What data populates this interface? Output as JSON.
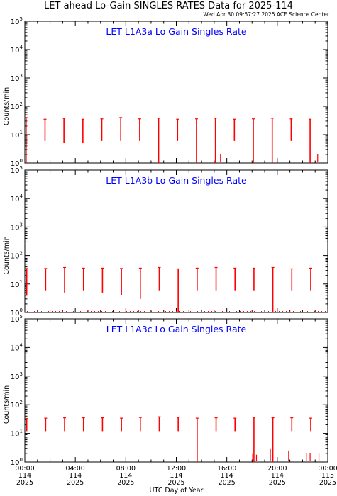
{
  "header": {
    "title": "LET ahead Lo-Gain SINGLES RATES Data for 2025-114",
    "timestamp": "Wed Apr 30 09:57:27 2025 ACE Science Center"
  },
  "colors": {
    "data": "#ff0000",
    "panel_title": "#0000ff",
    "axes": "#000000"
  },
  "chart_data": [
    {
      "type": "line",
      "title": "LET L1A3a Lo Gain Singles Rate",
      "ylabel": "Counts/min",
      "yscale": "log",
      "ylim": [
        1,
        100000
      ],
      "xlim": [
        0,
        24
      ],
      "bursts": [
        {
          "x": 0.1,
          "hi": 40,
          "lo": 1
        },
        {
          "x": 1.6,
          "hi": 35,
          "lo": 6
        },
        {
          "x": 3.1,
          "hi": 38,
          "lo": 5
        },
        {
          "x": 4.6,
          "hi": 35,
          "lo": 5
        },
        {
          "x": 6.1,
          "hi": 36,
          "lo": 6
        },
        {
          "x": 7.6,
          "hi": 40,
          "lo": 6
        },
        {
          "x": 9.1,
          "hi": 36,
          "lo": 6
        },
        {
          "x": 10.6,
          "hi": 38,
          "lo": 1
        },
        {
          "x": 12.1,
          "hi": 35,
          "lo": 6
        },
        {
          "x": 13.6,
          "hi": 36,
          "lo": 1
        },
        {
          "x": 15.1,
          "hi": 38,
          "lo": 1
        },
        {
          "x": 16.6,
          "hi": 35,
          "lo": 6
        },
        {
          "x": 18.1,
          "hi": 36,
          "lo": 1
        },
        {
          "x": 19.6,
          "hi": 38,
          "lo": 1
        },
        {
          "x": 21.1,
          "hi": 36,
          "lo": 6
        },
        {
          "x": 22.6,
          "hi": 35,
          "lo": 1
        }
      ],
      "spikes": [
        {
          "x": 15.5,
          "v": 2
        },
        {
          "x": 23.2,
          "v": 2
        }
      ]
    },
    {
      "type": "line",
      "title": "LET L1A3b Lo Gain Singles Rate",
      "ylabel": "Counts/min",
      "yscale": "log",
      "ylim": [
        1,
        100000
      ],
      "xlim": [
        0,
        24
      ],
      "bursts": [
        {
          "x": 0.15,
          "hi": 35,
          "lo": 4
        },
        {
          "x": 1.65,
          "hi": 35,
          "lo": 6
        },
        {
          "x": 3.15,
          "hi": 38,
          "lo": 5
        },
        {
          "x": 4.65,
          "hi": 36,
          "lo": 6
        },
        {
          "x": 6.15,
          "hi": 36,
          "lo": 5
        },
        {
          "x": 7.65,
          "hi": 35,
          "lo": 4
        },
        {
          "x": 9.15,
          "hi": 36,
          "lo": 3
        },
        {
          "x": 10.65,
          "hi": 38,
          "lo": 6
        },
        {
          "x": 12.15,
          "hi": 34,
          "lo": 1
        },
        {
          "x": 13.65,
          "hi": 36,
          "lo": 6
        },
        {
          "x": 15.15,
          "hi": 38,
          "lo": 6
        },
        {
          "x": 16.65,
          "hi": 36,
          "lo": 6
        },
        {
          "x": 18.15,
          "hi": 36,
          "lo": 6
        },
        {
          "x": 19.65,
          "hi": 38,
          "lo": 1
        },
        {
          "x": 21.15,
          "hi": 34,
          "lo": 6
        },
        {
          "x": 22.65,
          "hi": 36,
          "lo": 6
        }
      ],
      "spikes": []
    },
    {
      "type": "line",
      "title": "LET L1A3c Lo Gain Singles Rate",
      "ylabel": "Counts/min",
      "yscale": "log",
      "ylim": [
        1,
        100000
      ],
      "xlim": [
        0,
        24
      ],
      "bursts": [
        {
          "x": 0.15,
          "hi": 33,
          "lo": 12
        },
        {
          "x": 1.65,
          "hi": 34,
          "lo": 12
        },
        {
          "x": 3.15,
          "hi": 35,
          "lo": 12
        },
        {
          "x": 4.65,
          "hi": 35,
          "lo": 12
        },
        {
          "x": 6.15,
          "hi": 35,
          "lo": 12
        },
        {
          "x": 7.65,
          "hi": 34,
          "lo": 12
        },
        {
          "x": 9.15,
          "hi": 36,
          "lo": 12
        },
        {
          "x": 10.65,
          "hi": 38,
          "lo": 12
        },
        {
          "x": 12.15,
          "hi": 36,
          "lo": 12
        },
        {
          "x": 13.65,
          "hi": 34,
          "lo": 1
        },
        {
          "x": 15.15,
          "hi": 35,
          "lo": 12
        },
        {
          "x": 16.65,
          "hi": 34,
          "lo": 12
        },
        {
          "x": 18.15,
          "hi": 36,
          "lo": 1
        },
        {
          "x": 19.65,
          "hi": 35,
          "lo": 1
        },
        {
          "x": 21.15,
          "hi": 35,
          "lo": 12
        },
        {
          "x": 22.65,
          "hi": 34,
          "lo": 12
        }
      ],
      "spikes": [
        {
          "x": 18.05,
          "v": 1.9
        },
        {
          "x": 18.35,
          "v": 1.8
        },
        {
          "x": 19.45,
          "v": 3
        },
        {
          "x": 20.9,
          "v": 2.5
        },
        {
          "x": 22.3,
          "v": 2
        },
        {
          "x": 22.6,
          "v": 2
        },
        {
          "x": 23.3,
          "v": 2
        }
      ]
    }
  ],
  "x_axis": {
    "label": "UTC Day of Year",
    "ticks": [
      {
        "x": 0,
        "time": "00:00",
        "day": "114",
        "year": "2025"
      },
      {
        "x": 4,
        "time": "04:00",
        "day": "114",
        "year": "2025"
      },
      {
        "x": 8,
        "time": "08:00",
        "day": "114",
        "year": "2025"
      },
      {
        "x": 12,
        "time": "12:00",
        "day": "114",
        "year": "2025"
      },
      {
        "x": 16,
        "time": "16:00",
        "day": "114",
        "year": "2025"
      },
      {
        "x": 20,
        "time": "20:00",
        "day": "114",
        "year": "2025"
      },
      {
        "x": 24,
        "time": "00:00",
        "day": "115",
        "year": "2025"
      }
    ]
  }
}
